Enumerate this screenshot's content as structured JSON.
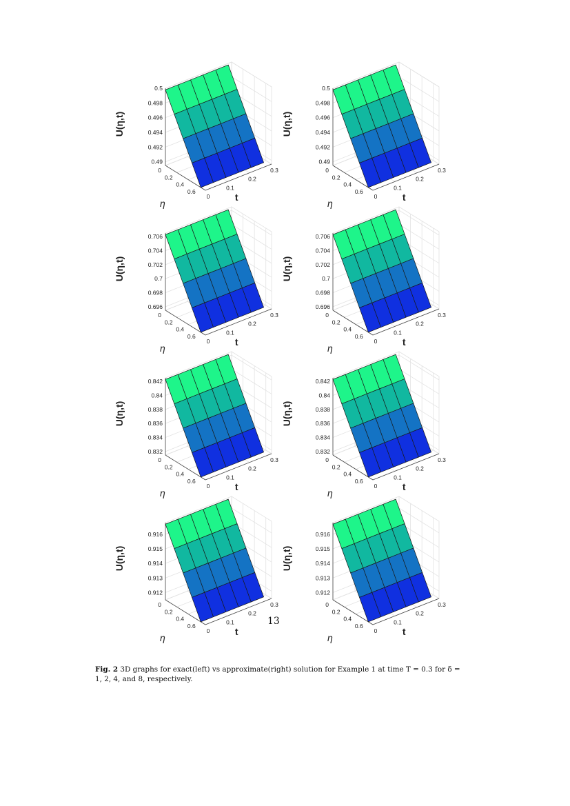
{
  "page_number": "13",
  "caption": {
    "label": "Fig. 2",
    "text": "3D graphs for exact(left) vs approximate(right) solution for Example 1 at time T = 0.3 for δ = 1, 2, 4, and 8, respectively."
  },
  "colors": {
    "top_band": "#1ef58a",
    "band_2": "#11b8a0",
    "band_3": "#1473c4",
    "bottom_band": "#1030e0",
    "grid": "#e2e2e2",
    "axis": "#444444"
  },
  "chart_data": [
    {
      "type": "surface",
      "panel": "exact",
      "delta": 1,
      "zlabel": "U(η,t)",
      "xlabel": "t",
      "ylabel": "η",
      "z_ticks": [
        "0.5",
        "0.498",
        "0.496",
        "0.494",
        "0.492",
        "0.49"
      ],
      "t_ticks": [
        "0",
        "0.1",
        "0.2",
        "0.3"
      ],
      "eta_ticks": [
        "0",
        "0.2",
        "0.4",
        "0.6"
      ],
      "zlim": [
        0.4895,
        0.5
      ],
      "tlim": [
        0,
        0.3
      ],
      "etalim": [
        0,
        0.7
      ],
      "grid": true
    },
    {
      "type": "surface",
      "panel": "approximate",
      "delta": 1,
      "zlabel": "U(η,t)",
      "xlabel": "t",
      "ylabel": "η",
      "z_ticks": [
        "0.5",
        "0.498",
        "0.496",
        "0.494",
        "0.492",
        "0.49"
      ],
      "t_ticks": [
        "0",
        "0.1",
        "0.2",
        "0.3"
      ],
      "eta_ticks": [
        "0",
        "0.2",
        "0.4",
        "0.6"
      ],
      "zlim": [
        0.4895,
        0.5
      ],
      "tlim": [
        0,
        0.3
      ],
      "etalim": [
        0,
        0.7
      ],
      "grid": true
    },
    {
      "type": "surface",
      "panel": "exact",
      "delta": 2,
      "zlabel": "U(η,t)",
      "xlabel": "t",
      "ylabel": "η",
      "z_ticks": [
        "0.706",
        "0.704",
        "0.702",
        "0.7",
        "0.698",
        "0.696"
      ],
      "t_ticks": [
        "0",
        "0.1",
        "0.2",
        "0.3"
      ],
      "eta_ticks": [
        "0",
        "0.2",
        "0.4",
        "0.6"
      ],
      "zlim": [
        0.6955,
        0.7065
      ],
      "tlim": [
        0,
        0.3
      ],
      "etalim": [
        0,
        0.7
      ],
      "grid": true
    },
    {
      "type": "surface",
      "panel": "approximate",
      "delta": 2,
      "zlabel": "U(η,t)",
      "xlabel": "t",
      "ylabel": "η",
      "z_ticks": [
        "0.706",
        "0.704",
        "0.702",
        "0.7",
        "0.698",
        "0.696"
      ],
      "t_ticks": [
        "0",
        "0.1",
        "0.2",
        "0.3"
      ],
      "eta_ticks": [
        "0",
        "0.2",
        "0.4",
        "0.6"
      ],
      "zlim": [
        0.6955,
        0.7065
      ],
      "tlim": [
        0,
        0.3
      ],
      "etalim": [
        0,
        0.7
      ],
      "grid": true
    },
    {
      "type": "surface",
      "panel": "exact",
      "delta": 4,
      "zlabel": "U(η,t)",
      "xlabel": "t",
      "ylabel": "η",
      "z_ticks": [
        "0.842",
        "0.84",
        "0.838",
        "0.836",
        "0.834",
        "0.832"
      ],
      "t_ticks": [
        "0",
        "0.1",
        "0.2",
        "0.3"
      ],
      "eta_ticks": [
        "0",
        "0.2",
        "0.4",
        "0.6"
      ],
      "zlim": [
        0.8315,
        0.8425
      ],
      "tlim": [
        0,
        0.3
      ],
      "etalim": [
        0,
        0.7
      ],
      "grid": true
    },
    {
      "type": "surface",
      "panel": "approximate",
      "delta": 4,
      "zlabel": "U(η,t)",
      "xlabel": "t",
      "ylabel": "η",
      "z_ticks": [
        "0.842",
        "0.84",
        "0.838",
        "0.836",
        "0.834",
        "0.832"
      ],
      "t_ticks": [
        "0",
        "0.1",
        "0.2",
        "0.3"
      ],
      "eta_ticks": [
        "0",
        "0.2",
        "0.4",
        "0.6"
      ],
      "zlim": [
        0.8315,
        0.8425
      ],
      "tlim": [
        0,
        0.3
      ],
      "etalim": [
        0,
        0.7
      ],
      "grid": true
    },
    {
      "type": "surface",
      "panel": "exact",
      "delta": 8,
      "zlabel": "U(η,t)",
      "xlabel": "t",
      "ylabel": "η",
      "z_ticks": [
        "0.916",
        "0.915",
        "0.914",
        "0.913",
        "0.912"
      ],
      "t_ticks": [
        "0",
        "0.1",
        "0.2",
        "0.3"
      ],
      "eta_ticks": [
        "0",
        "0.2",
        "0.4",
        "0.6"
      ],
      "zlim": [
        0.9115,
        0.9168
      ],
      "tlim": [
        0,
        0.3
      ],
      "etalim": [
        0,
        0.7
      ],
      "grid": true
    },
    {
      "type": "surface",
      "panel": "approximate",
      "delta": 8,
      "zlabel": "U(η,t)",
      "xlabel": "t",
      "ylabel": "η",
      "z_ticks": [
        "0.916",
        "0.915",
        "0.914",
        "0.913",
        "0.912"
      ],
      "t_ticks": [
        "0",
        "0.1",
        "0.2",
        "0.3"
      ],
      "eta_ticks": [
        "0",
        "0.2",
        "0.4",
        "0.6"
      ],
      "zlim": [
        0.9115,
        0.9168
      ],
      "tlim": [
        0,
        0.3
      ],
      "etalim": [
        0,
        0.7
      ],
      "grid": true
    }
  ]
}
